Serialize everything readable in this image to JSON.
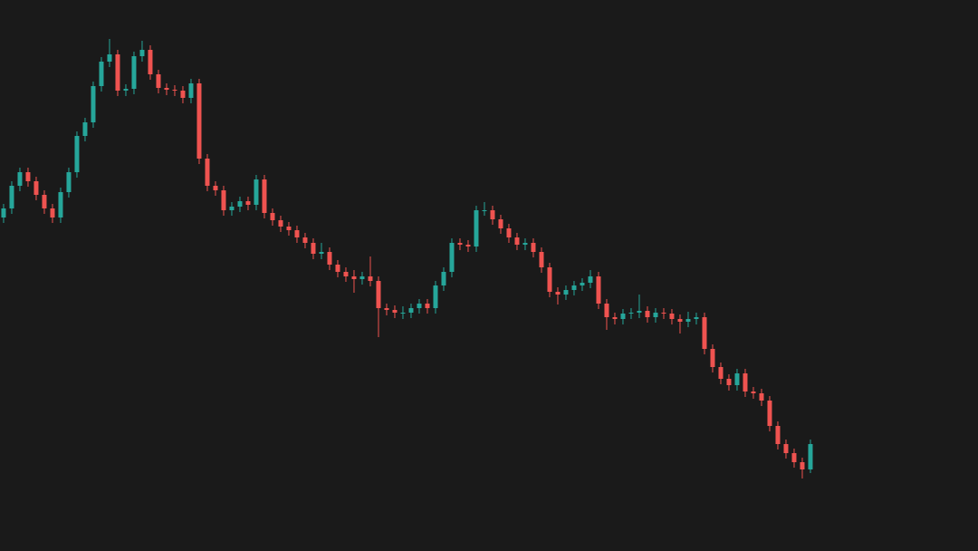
{
  "chart_data": {
    "type": "candlestick",
    "up_color": "#26a69a",
    "down_color": "#ef5350",
    "xlim": [
      -0.44,
      119.56
    ],
    "ylim": [
      0,
      608
    ],
    "x": [
      0,
      1,
      2,
      3,
      4,
      5,
      6,
      7,
      8,
      9,
      10,
      11,
      12,
      13,
      14,
      15,
      16,
      17,
      18,
      19,
      20,
      21,
      22,
      23,
      24,
      25,
      26,
      27,
      28,
      29,
      30,
      31,
      32,
      33,
      34,
      35,
      36,
      37,
      38,
      39,
      40,
      41,
      42,
      43,
      44,
      45,
      46,
      47,
      48,
      49,
      50,
      51,
      52,
      53,
      54,
      55,
      56,
      57,
      58,
      59,
      60,
      61,
      62,
      63,
      64,
      65,
      66,
      67,
      68,
      69,
      70,
      71,
      72,
      73,
      74,
      75,
      76,
      77,
      78,
      79,
      80,
      81,
      82,
      83,
      84,
      85,
      86,
      87,
      88,
      89,
      90,
      91,
      92,
      93,
      94,
      95,
      96,
      97,
      98,
      99
    ],
    "open": [
      368,
      378,
      403,
      418,
      408,
      393,
      378,
      368,
      396,
      418,
      458,
      473,
      513,
      540,
      548,
      508,
      510,
      546,
      553,
      526,
      511,
      509,
      508,
      500,
      516,
      433,
      403,
      398,
      376,
      380,
      386,
      382,
      410,
      373,
      365,
      358,
      354,
      346,
      340,
      328,
      330,
      316,
      308,
      303,
      300,
      303,
      298,
      268,
      266,
      263,
      263,
      268,
      273,
      268,
      293,
      308,
      340,
      338,
      336,
      376,
      376,
      366,
      356,
      346,
      338,
      340,
      330,
      313,
      286,
      283,
      288,
      293,
      296,
      303,
      273,
      258,
      256,
      262,
      263,
      265,
      258,
      263,
      262,
      256,
      253,
      256,
      258,
      223,
      203,
      190,
      183,
      196,
      176,
      174,
      166,
      138,
      118,
      108,
      98,
      90
    ],
    "high": [
      383,
      408,
      423,
      423,
      413,
      398,
      383,
      401,
      423,
      463,
      478,
      518,
      545,
      565,
      553,
      515,
      551,
      563,
      558,
      531,
      516,
      514,
      513,
      521,
      521,
      438,
      408,
      403,
      385,
      391,
      391,
      415,
      415,
      378,
      370,
      363,
      359,
      351,
      345,
      340,
      335,
      321,
      313,
      310,
      308,
      325,
      303,
      273,
      271,
      270,
      273,
      278,
      278,
      298,
      313,
      345,
      345,
      343,
      381,
      385,
      381,
      371,
      361,
      351,
      345,
      345,
      335,
      318,
      291,
      293,
      298,
      301,
      310,
      308,
      278,
      263,
      267,
      268,
      283,
      270,
      268,
      268,
      267,
      261,
      264,
      263,
      263,
      228,
      208,
      195,
      201,
      201,
      181,
      179,
      171,
      143,
      123,
      113,
      103,
      123
    ],
    "low": [
      362,
      372,
      397,
      402,
      387,
      372,
      362,
      362,
      390,
      412,
      452,
      467,
      507,
      534,
      502,
      502,
      504,
      540,
      520,
      505,
      503,
      502,
      494,
      494,
      427,
      397,
      392,
      370,
      370,
      374,
      376,
      376,
      367,
      359,
      352,
      348,
      340,
      334,
      322,
      322,
      310,
      302,
      297,
      285,
      294,
      292,
      236,
      260,
      257,
      256,
      257,
      262,
      262,
      262,
      287,
      302,
      332,
      330,
      330,
      370,
      360,
      350,
      340,
      332,
      332,
      324,
      307,
      280,
      272,
      277,
      282,
      287,
      290,
      267,
      244,
      250,
      250,
      256,
      257,
      252,
      252,
      256,
      250,
      240,
      247,
      250,
      217,
      197,
      184,
      177,
      177,
      170,
      168,
      160,
      132,
      112,
      102,
      92,
      80,
      86
    ],
    "close": [
      378,
      403,
      418,
      408,
      393,
      378,
      368,
      396,
      418,
      458,
      473,
      513,
      540,
      548,
      508,
      510,
      546,
      553,
      526,
      511,
      509,
      508,
      500,
      516,
      433,
      403,
      398,
      376,
      380,
      386,
      382,
      410,
      373,
      365,
      358,
      354,
      346,
      340,
      328,
      330,
      316,
      308,
      303,
      300,
      303,
      298,
      268,
      266,
      263,
      263,
      268,
      273,
      268,
      293,
      308,
      340,
      338,
      336,
      376,
      376,
      366,
      356,
      346,
      338,
      340,
      330,
      313,
      286,
      283,
      288,
      293,
      296,
      303,
      273,
      258,
      256,
      262,
      263,
      265,
      258,
      263,
      262,
      256,
      253,
      256,
      258,
      223,
      203,
      190,
      183,
      196,
      176,
      174,
      166,
      138,
      118,
      108,
      98,
      90,
      118
    ]
  }
}
